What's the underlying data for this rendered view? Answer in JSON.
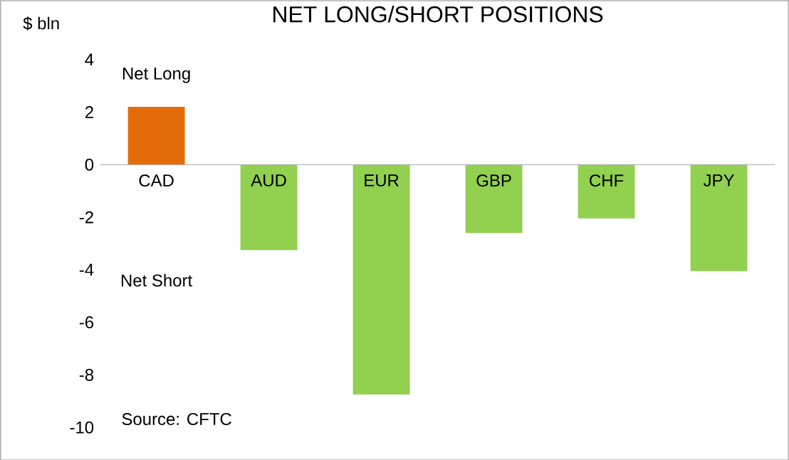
{
  "chart_data": {
    "type": "bar",
    "title": "NET LONG/SHORT POSITIONS",
    "ylabel": "$ bln",
    "categories": [
      "CAD",
      "AUD",
      "EUR",
      "GBP",
      "CHF",
      "JPY"
    ],
    "values": [
      2.2,
      -3.25,
      -8.75,
      -2.6,
      -2.05,
      -4.05
    ],
    "colors": [
      "#e36c09",
      "#92d050",
      "#92d050",
      "#92d050",
      "#92d050",
      "#92d050"
    ],
    "ylim": [
      -10,
      4
    ],
    "yticks": [
      -10,
      -8,
      -6,
      -4,
      -2,
      0,
      2,
      4
    ],
    "annotations": [
      "Net Long",
      "Net Short",
      "Source: CFTC"
    ]
  }
}
